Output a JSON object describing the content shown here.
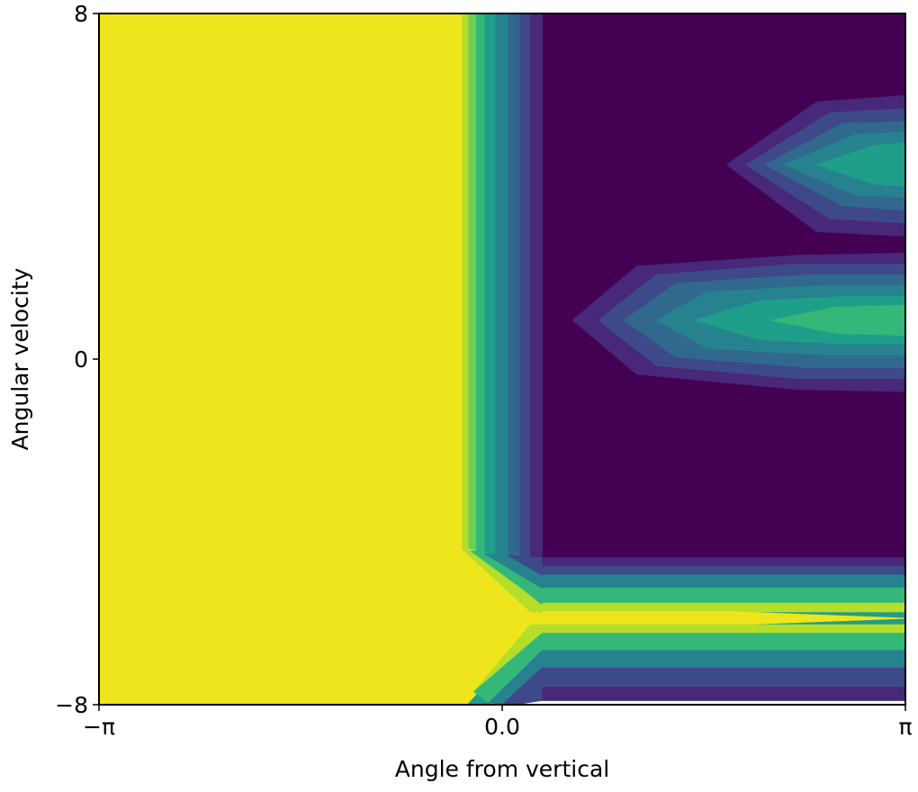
{
  "chart_data": {
    "type": "contour",
    "title": "",
    "xlabel": "Angle from vertical",
    "ylabel": "Angular velocity",
    "xlim": [
      -3.14159,
      3.14159
    ],
    "ylim": [
      -8,
      8
    ],
    "x_ticks": [
      {
        "value": -3.14159,
        "label": "−π"
      },
      {
        "value": 0.0,
        "label": "0.0"
      },
      {
        "value": 3.14159,
        "label": "π"
      }
    ],
    "y_ticks": [
      {
        "value": 8,
        "label": "8"
      },
      {
        "value": 0,
        "label": "0"
      },
      {
        "value": -8,
        "label": "−8"
      }
    ],
    "grid": false,
    "legend": "none",
    "colormap": "viridis",
    "level_colors": [
      "#440154",
      "#482878",
      "#3e4989",
      "#31688e",
      "#26828e",
      "#1f9e89",
      "#35b779",
      "#6ece58",
      "#b5de2b",
      "#efe51c"
    ],
    "regions": [
      {
        "name": "low-value-upper-right",
        "level": 0,
        "polygon": [
          [
            0.31,
            8
          ],
          [
            3.14159,
            8
          ],
          [
            3.14159,
            -4.6
          ],
          [
            0.31,
            -4.6
          ]
        ]
      },
      {
        "name": "gradient-vertical-band",
        "level": 5,
        "polygon": [
          [
            -0.31,
            8
          ],
          [
            0.31,
            8
          ],
          [
            0.31,
            -4.5
          ],
          [
            -0.31,
            -4.5
          ]
        ]
      },
      {
        "name": "gradient-lower-band",
        "level": 5,
        "polygon": [
          [
            -0.31,
            -4.5
          ],
          [
            0.31,
            -4.7
          ],
          [
            3.14159,
            -4.7
          ],
          [
            3.14159,
            -7.9
          ],
          [
            0.31,
            -7.9
          ],
          [
            -0.28,
            -8
          ]
        ]
      },
      {
        "name": "high-value-left",
        "level": 9,
        "polygon": [
          [
            -3.14159,
            8
          ],
          [
            -0.31,
            8
          ],
          [
            -0.31,
            -4.4
          ],
          [
            0.35,
            -6.0
          ],
          [
            -0.28,
            -8
          ],
          [
            -3.14159,
            -8
          ]
        ]
      }
    ],
    "bands": [
      {
        "name": "left-band-1",
        "level": 8,
        "polygon": [
          [
            -0.31,
            8
          ],
          [
            -0.26,
            8
          ],
          [
            -0.26,
            -4.4
          ],
          [
            -0.31,
            -4.4
          ]
        ]
      },
      {
        "name": "left-band-2",
        "level": 7,
        "polygon": [
          [
            -0.26,
            8
          ],
          [
            -0.2,
            8
          ],
          [
            -0.2,
            -4.45
          ],
          [
            -0.26,
            -4.45
          ]
        ]
      },
      {
        "name": "left-band-3",
        "level": 6,
        "polygon": [
          [
            -0.2,
            8
          ],
          [
            -0.14,
            8
          ],
          [
            -0.14,
            -4.5
          ],
          [
            -0.2,
            -4.5
          ]
        ]
      },
      {
        "name": "left-band-4",
        "level": 4,
        "polygon": [
          [
            -0.05,
            8
          ],
          [
            0.05,
            8
          ],
          [
            0.05,
            -4.55
          ],
          [
            -0.05,
            -4.55
          ]
        ]
      },
      {
        "name": "left-band-5",
        "level": 3,
        "polygon": [
          [
            0.05,
            8
          ],
          [
            0.14,
            8
          ],
          [
            0.14,
            -4.6
          ],
          [
            0.05,
            -4.6
          ]
        ]
      },
      {
        "name": "left-band-6",
        "level": 2,
        "polygon": [
          [
            0.14,
            8
          ],
          [
            0.22,
            8
          ],
          [
            0.22,
            -4.6
          ],
          [
            0.14,
            -4.6
          ]
        ]
      },
      {
        "name": "left-band-7",
        "level": 1,
        "polygon": [
          [
            0.22,
            8
          ],
          [
            0.31,
            8
          ],
          [
            0.31,
            -4.6
          ],
          [
            0.22,
            -4.6
          ]
        ]
      },
      {
        "name": "lower-band-1",
        "level": 1,
        "polygon": [
          [
            0.31,
            -4.6
          ],
          [
            3.14159,
            -4.6
          ],
          [
            3.14159,
            -4.8
          ],
          [
            0.31,
            -4.8
          ]
        ]
      },
      {
        "name": "lower-band-2",
        "level": 2,
        "polygon": [
          [
            0.31,
            -4.8
          ],
          [
            3.14159,
            -4.8
          ],
          [
            3.14159,
            -5.0
          ],
          [
            0.31,
            -5.0
          ]
        ]
      },
      {
        "name": "lower-band-3",
        "level": 4,
        "polygon": [
          [
            0.31,
            -5.0
          ],
          [
            3.14159,
            -5.0
          ],
          [
            3.14159,
            -5.3
          ],
          [
            0.31,
            -5.3
          ]
        ]
      },
      {
        "name": "lower-band-4",
        "level": 6,
        "polygon": [
          [
            0.31,
            -5.3
          ],
          [
            3.14159,
            -5.3
          ],
          [
            3.14159,
            -5.65
          ],
          [
            0.31,
            -5.65
          ]
        ]
      },
      {
        "name": "lower-band-5",
        "level": 8,
        "polygon": [
          [
            0.31,
            -5.65
          ],
          [
            3.14159,
            -5.65
          ],
          [
            3.14159,
            -5.85
          ],
          [
            0.31,
            -5.85
          ]
        ]
      },
      {
        "name": "lower-band-6",
        "level": 9,
        "polygon": [
          [
            0.31,
            -5.85
          ],
          [
            1.8,
            -5.85
          ],
          [
            3.14159,
            -6.0
          ],
          [
            1.8,
            -6.15
          ],
          [
            0.31,
            -6.15
          ]
        ]
      },
      {
        "name": "lower-band-7",
        "level": 8,
        "polygon": [
          [
            0.31,
            -6.15
          ],
          [
            3.14159,
            -6.15
          ],
          [
            3.14159,
            -6.35
          ],
          [
            0.31,
            -6.35
          ]
        ]
      },
      {
        "name": "lower-band-8",
        "level": 6,
        "polygon": [
          [
            0.31,
            -6.35
          ],
          [
            3.14159,
            -6.35
          ],
          [
            3.14159,
            -6.75
          ],
          [
            0.31,
            -6.75
          ]
        ]
      },
      {
        "name": "lower-band-9",
        "level": 4,
        "polygon": [
          [
            0.31,
            -6.75
          ],
          [
            3.14159,
            -6.75
          ],
          [
            3.14159,
            -7.15
          ],
          [
            0.31,
            -7.15
          ]
        ]
      },
      {
        "name": "lower-band-10",
        "level": 2,
        "polygon": [
          [
            0.31,
            -7.15
          ],
          [
            3.14159,
            -7.15
          ],
          [
            3.14159,
            -7.6
          ],
          [
            0.31,
            -7.6
          ]
        ]
      },
      {
        "name": "lower-band-11",
        "level": 1,
        "polygon": [
          [
            0.31,
            -7.6
          ],
          [
            3.14159,
            -7.6
          ],
          [
            3.14159,
            -7.9
          ],
          [
            0.31,
            -7.9
          ]
        ]
      },
      {
        "name": "corner-wedge-1",
        "level": 8,
        "polygon": [
          [
            -0.31,
            -4.4
          ],
          [
            -0.24,
            -4.4
          ],
          [
            0.31,
            -5.7
          ],
          [
            0.31,
            -5.85
          ],
          [
            0.22,
            -5.85
          ]
        ]
      },
      {
        "name": "corner-wedge-2",
        "level": 6,
        "polygon": [
          [
            -0.24,
            -4.45
          ],
          [
            -0.14,
            -4.45
          ],
          [
            0.31,
            -5.3
          ],
          [
            0.31,
            -5.65
          ]
        ]
      },
      {
        "name": "corner-wedge-3",
        "level": 4,
        "polygon": [
          [
            -0.14,
            -4.5
          ],
          [
            0.05,
            -4.55
          ],
          [
            0.31,
            -5.0
          ],
          [
            0.31,
            -5.3
          ]
        ]
      },
      {
        "name": "corner-wedge-4",
        "level": 2,
        "polygon": [
          [
            0.05,
            -4.55
          ],
          [
            0.31,
            -4.6
          ],
          [
            0.31,
            -5.0
          ]
        ]
      },
      {
        "name": "corner-lower-1",
        "level": 8,
        "polygon": [
          [
            0.22,
            -6.15
          ],
          [
            0.31,
            -6.15
          ],
          [
            0.31,
            -6.35
          ],
          [
            -0.22,
            -7.7
          ]
        ]
      },
      {
        "name": "corner-lower-2",
        "level": 6,
        "polygon": [
          [
            0.31,
            -6.35
          ],
          [
            0.31,
            -6.75
          ],
          [
            -0.1,
            -7.95
          ],
          [
            -0.22,
            -7.7
          ]
        ]
      },
      {
        "name": "corner-lower-3",
        "level": 4,
        "polygon": [
          [
            0.31,
            -6.75
          ],
          [
            0.31,
            -7.15
          ],
          [
            0.0,
            -8
          ],
          [
            -0.1,
            -7.95
          ]
        ]
      },
      {
        "name": "corner-lower-4",
        "level": 2,
        "polygon": [
          [
            0.31,
            -7.15
          ],
          [
            0.31,
            -7.9
          ],
          [
            0.1,
            -8
          ],
          [
            0.0,
            -8
          ]
        ]
      }
    ],
    "lobes": [
      {
        "name": "middle-lobe",
        "rings": [
          {
            "level": 1,
            "polygon": [
              [
                0.55,
                0.9
              ],
              [
                1.05,
                2.15
              ],
              [
                2.3,
                2.4
              ],
              [
                3.14159,
                2.45
              ],
              [
                3.14159,
                -0.75
              ],
              [
                2.3,
                -0.7
              ],
              [
                1.05,
                -0.35
              ]
            ]
          },
          {
            "level": 2,
            "polygon": [
              [
                0.75,
                0.9
              ],
              [
                1.2,
                1.95
              ],
              [
                2.3,
                2.2
              ],
              [
                3.14159,
                2.2
              ],
              [
                3.14159,
                -0.45
              ],
              [
                2.3,
                -0.45
              ],
              [
                1.2,
                -0.15
              ]
            ]
          },
          {
            "level": 3,
            "polygon": [
              [
                0.95,
                0.9
              ],
              [
                1.35,
                1.75
              ],
              [
                2.4,
                1.95
              ],
              [
                3.14159,
                1.95
              ],
              [
                3.14159,
                -0.2
              ],
              [
                2.4,
                -0.2
              ],
              [
                1.35,
                0.05
              ]
            ]
          },
          {
            "level": 4,
            "polygon": [
              [
                1.2,
                0.9
              ],
              [
                1.6,
                1.55
              ],
              [
                2.5,
                1.7
              ],
              [
                3.14159,
                1.7
              ],
              [
                3.14159,
                0.1
              ],
              [
                2.5,
                0.1
              ],
              [
                1.6,
                0.25
              ]
            ]
          },
          {
            "level": 5,
            "polygon": [
              [
                1.5,
                0.9
              ],
              [
                2.0,
                1.35
              ],
              [
                2.7,
                1.45
              ],
              [
                3.14159,
                1.45
              ],
              [
                3.14159,
                0.35
              ],
              [
                2.7,
                0.35
              ],
              [
                2.0,
                0.45
              ]
            ]
          },
          {
            "level": 6,
            "polygon": [
              [
                2.1,
                0.9
              ],
              [
                2.6,
                1.2
              ],
              [
                3.14159,
                1.25
              ],
              [
                3.14159,
                0.55
              ],
              [
                2.6,
                0.6
              ]
            ]
          }
        ]
      },
      {
        "name": "upper-lobe",
        "rings": [
          {
            "level": 1,
            "polygon": [
              [
                1.75,
                4.5
              ],
              [
                2.45,
                5.95
              ],
              [
                3.14159,
                6.1
              ],
              [
                3.14159,
                2.85
              ],
              [
                2.45,
                2.95
              ]
            ]
          },
          {
            "level": 2,
            "polygon": [
              [
                1.9,
                4.5
              ],
              [
                2.55,
                5.7
              ],
              [
                3.14159,
                5.8
              ],
              [
                3.14159,
                3.15
              ],
              [
                2.55,
                3.25
              ]
            ]
          },
          {
            "level": 3,
            "polygon": [
              [
                2.05,
                4.5
              ],
              [
                2.65,
                5.45
              ],
              [
                3.14159,
                5.5
              ],
              [
                3.14159,
                3.45
              ],
              [
                2.65,
                3.55
              ]
            ]
          },
          {
            "level": 4,
            "polygon": [
              [
                2.2,
                4.5
              ],
              [
                2.75,
                5.2
              ],
              [
                3.14159,
                5.25
              ],
              [
                3.14159,
                3.75
              ],
              [
                2.75,
                3.8
              ]
            ]
          },
          {
            "level": 5,
            "polygon": [
              [
                2.45,
                4.5
              ],
              [
                2.9,
                4.95
              ],
              [
                3.14159,
                5.0
              ],
              [
                3.14159,
                4.0
              ],
              [
                2.9,
                4.05
              ]
            ]
          }
        ]
      }
    ]
  }
}
